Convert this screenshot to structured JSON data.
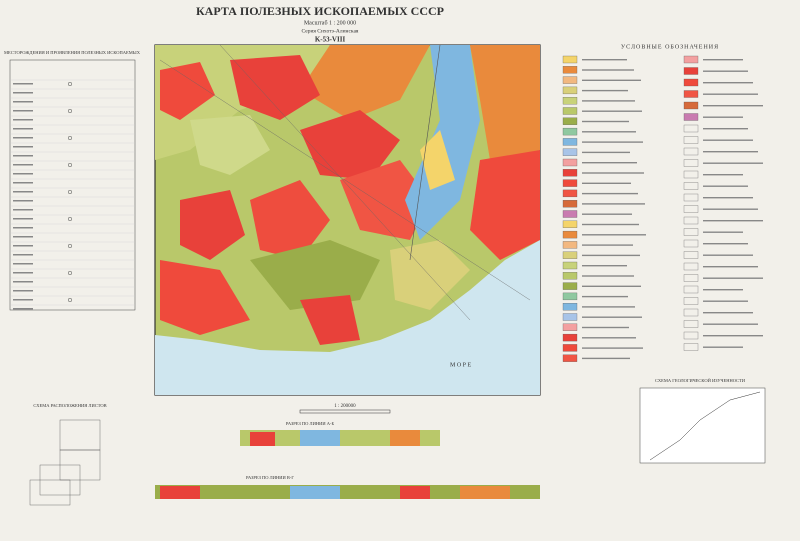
{
  "header": {
    "title": "КАРТА ПОЛЕЗНЫХ ИСКОПАЕМЫХ СССР",
    "scale": "Масштаб 1 : 200 000",
    "series": "Серия Сихотэ-Алинская",
    "sheet": "K-53-VIII"
  },
  "left_legend": {
    "title": "МЕСТОРОЖДЕНИЯ И ПРОЯВЛЕНИЯ ПОЛЕЗНЫХ ИСКОПАЕМЫХ"
  },
  "right_legend": {
    "title": "УСЛОВНЫЕ ОБОЗНАЧЕНИЯ"
  },
  "map": {
    "sea_label": "М О Р Е",
    "scale_bar": "1 : 200000"
  },
  "sections": {
    "first": "РАЗРЕЗ ПО ЛИНИИ А-Б",
    "second": "РАЗРЕЗ ПО ЛИНИИ В-Г"
  },
  "sheet_scheme": {
    "title": "СХЕМА РАСПОЛОЖЕНИЯ ЛИСТОВ"
  },
  "study_scheme": {
    "title": "СХЕМА ГЕОЛОГИЧЕСКОЙ ИЗУЧЕННОСТИ"
  }
}
